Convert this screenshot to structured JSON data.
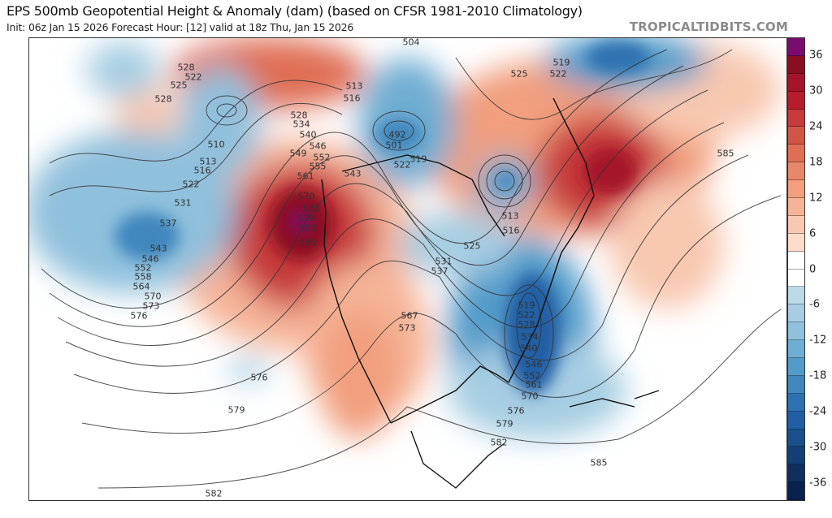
{
  "header": {
    "title": "EPS 500mb Geopotential Height & Anomaly (dam) (based on CFSR 1981-2010 Climatology)",
    "subtitle": "Init: 06z Jan 15 2026   Forecast Hour: [12]   valid at 18z Thu, Jan 15 2026",
    "brand": "TROPICALTIDBITS.COM"
  },
  "colorbar": {
    "ticks": [
      "36",
      "30",
      "24",
      "18",
      "12",
      "6",
      "0",
      "-6",
      "-12",
      "-18",
      "-24",
      "-30",
      "-36"
    ],
    "colors": [
      "#7b0c6e",
      "#8b0d22",
      "#a5142a",
      "#b71c2c",
      "#c63a3b",
      "#d15546",
      "#df6e55",
      "#e8876a",
      "#f19f7e",
      "#f5b497",
      "#f8c8b0",
      "#fcdccb",
      "#ffffff",
      "#ffffff",
      "#bcd9e8",
      "#a6cde2",
      "#8fc0dc",
      "#6fadd2",
      "#539bc9",
      "#3f87bd",
      "#2d72b0",
      "#215fa4",
      "#1a4f8c",
      "#143f74",
      "#0f305d",
      "#0a2150"
    ]
  },
  "contour_labels": [
    "528",
    "522",
    "525",
    "528",
    "510",
    "513",
    "516",
    "522",
    "531",
    "537",
    "543",
    "546",
    "552",
    "558",
    "564",
    "570",
    "573",
    "576",
    "576",
    "579",
    "582",
    "504",
    "513",
    "516",
    "528",
    "534",
    "540",
    "546",
    "549",
    "552",
    "555",
    "561",
    "570",
    "576",
    "579",
    "582",
    "585",
    "543",
    "492",
    "501",
    "519",
    "522",
    "525",
    "519",
    "522",
    "513",
    "516",
    "525",
    "531",
    "537",
    "567",
    "573",
    "519",
    "522",
    "528",
    "534",
    "540",
    "546",
    "552",
    "561",
    "570",
    "576",
    "579",
    "582",
    "585",
    "585"
  ]
}
